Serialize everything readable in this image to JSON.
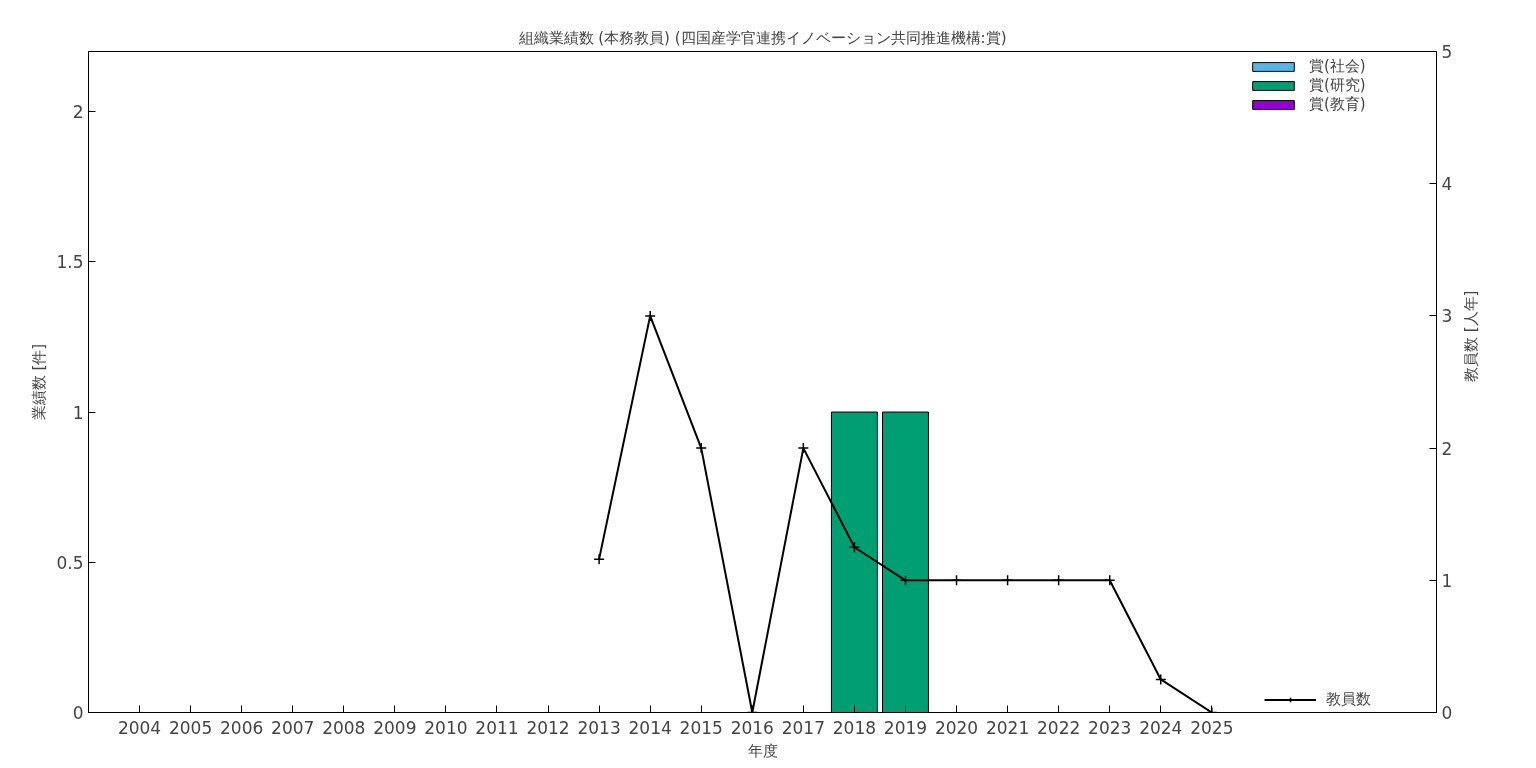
{
  "chart_data": {
    "type": "bar",
    "title": "組織業績数 (本務教員) (四国産学官連携イノベーション共同推進機構:賞)",
    "xlabel": "年度",
    "ylabel": "業績数 [件]",
    "y2label": "教員数 [人年]",
    "x": [
      2004,
      2005,
      2006,
      2007,
      2008,
      2009,
      2010,
      2011,
      2012,
      2013,
      2014,
      2015,
      2016,
      2017,
      2018,
      2019,
      2020,
      2021,
      2022,
      2023,
      2024,
      2025
    ],
    "xlim": [
      2003,
      2029.4
    ],
    "xticks": [
      2004,
      2005,
      2006,
      2007,
      2008,
      2009,
      2010,
      2011,
      2012,
      2013,
      2014,
      2015,
      2016,
      2017,
      2018,
      2019,
      2020,
      2021,
      2022,
      2023,
      2024,
      2025
    ],
    "ylim": [
      0,
      2.2
    ],
    "yticks": [
      0,
      0.5,
      1,
      1.5,
      2
    ],
    "y2lim": [
      0,
      5
    ],
    "y2ticks": [
      0,
      1,
      2,
      3,
      4,
      5
    ],
    "stacked": true,
    "legend": "right",
    "series": [
      {
        "name": "賞(社会)",
        "color": "#56b4e9",
        "values": [
          0,
          0,
          0,
          0,
          0,
          0,
          0,
          0,
          0,
          0,
          0,
          0,
          0,
          0,
          0,
          0,
          0,
          0,
          0,
          0,
          0,
          0
        ]
      },
      {
        "name": "賞(研究)",
        "color": "#009e73",
        "values": [
          0,
          0,
          0,
          0,
          0,
          0,
          0,
          0,
          0,
          0,
          0,
          0,
          0,
          0,
          1,
          1,
          0,
          0,
          0,
          0,
          0,
          0
        ]
      },
      {
        "name": "賞(教育)",
        "color": "#9400d3",
        "values": [
          0,
          0,
          0,
          0,
          0,
          0,
          0,
          0,
          0,
          0,
          0,
          0,
          0,
          0,
          0,
          0,
          0,
          0,
          0,
          0,
          0,
          0
        ]
      },
      {
        "name": "教員数",
        "type": "line",
        "axis": "y2",
        "color": "#000000",
        "marker": "cross",
        "line_style": "solid",
        "values": [
          null,
          null,
          null,
          null,
          null,
          null,
          null,
          null,
          null,
          1.16,
          3,
          2,
          0,
          2,
          1.25,
          1,
          1,
          1,
          1,
          1,
          0.25,
          0
        ]
      }
    ]
  }
}
